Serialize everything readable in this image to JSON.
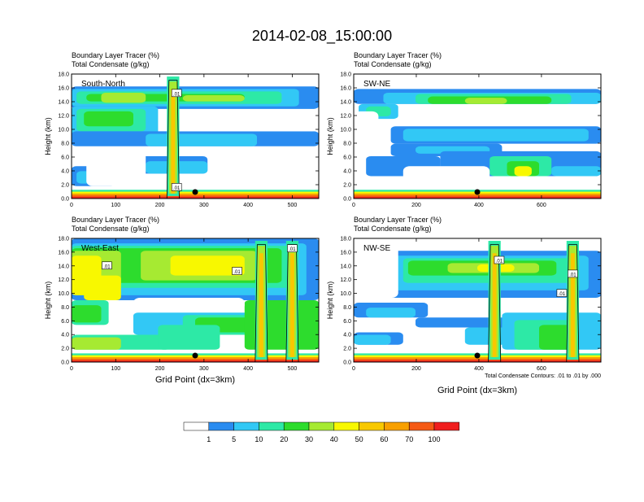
{
  "title": "2014-02-08_15:00:00",
  "panel_titles": {
    "line1": "Boundary Layer Tracer   (%)",
    "line2": "Total Condensate   (g/kg)"
  },
  "ylabel": "Height (km)",
  "xlabel": "Grid Point (dx=3km)",
  "contour_note": "Total Condensate Contours: .01 to .01 by .000",
  "contour_label": ".01",
  "colors": [
    "#ffffff",
    "#2a8cf0",
    "#32c8f5",
    "#2de9a6",
    "#2ddc2d",
    "#a6ea32",
    "#f8f800",
    "#f8c800",
    "#f8a000",
    "#f55a14",
    "#f01e1e"
  ],
  "colorbar": {
    "labels": [
      "1",
      "5",
      "10",
      "20",
      "30",
      "40",
      "50",
      "60",
      "70",
      "100"
    ]
  },
  "chart_data": [
    {
      "type": "heatmap",
      "name": "South-North",
      "xlim": [
        0,
        560
      ],
      "ylim": [
        0,
        18
      ],
      "xticks": [
        0,
        100,
        200,
        300,
        400,
        500
      ],
      "yticks": [
        0,
        2,
        4,
        6,
        8,
        10,
        12,
        14,
        16,
        18
      ],
      "marker_x": 280,
      "tower_x": [
        230
      ],
      "contour_labels": [
        [
          238,
          15.2
        ],
        [
          238,
          1.6
        ]
      ]
    },
    {
      "type": "heatmap",
      "name": "SW-NE",
      "xlim": [
        0,
        790
      ],
      "ylim": [
        0,
        18
      ],
      "xticks": [
        0,
        200,
        400,
        600
      ],
      "yticks": [
        0,
        2,
        4,
        6,
        8,
        10,
        12,
        14,
        16,
        18
      ],
      "marker_x": 395,
      "tower_x": [],
      "contour_labels": []
    },
    {
      "type": "heatmap",
      "name": "West-East",
      "xlim": [
        0,
        560
      ],
      "ylim": [
        0,
        18
      ],
      "xticks": [
        0,
        100,
        200,
        300,
        400,
        500
      ],
      "yticks": [
        0,
        2,
        4,
        6,
        8,
        10,
        12,
        14,
        16,
        18
      ],
      "marker_x": 280,
      "tower_x": [
        430,
        500
      ],
      "contour_labels": [
        [
          80,
          14
        ],
        [
          375,
          13.2
        ],
        [
          500,
          16.5
        ]
      ]
    },
    {
      "type": "heatmap",
      "name": "NW-SE",
      "xlim": [
        0,
        790
      ],
      "ylim": [
        0,
        18
      ],
      "xticks": [
        0,
        200,
        400,
        600
      ],
      "yticks": [
        0,
        2,
        4,
        6,
        8,
        10,
        12,
        14,
        16,
        18
      ],
      "marker_x": 395,
      "tower_x": [
        450,
        700
      ],
      "contour_labels": [
        [
          465,
          14.8
        ],
        [
          700,
          12.8
        ],
        [
          665,
          10
        ]
      ]
    }
  ]
}
